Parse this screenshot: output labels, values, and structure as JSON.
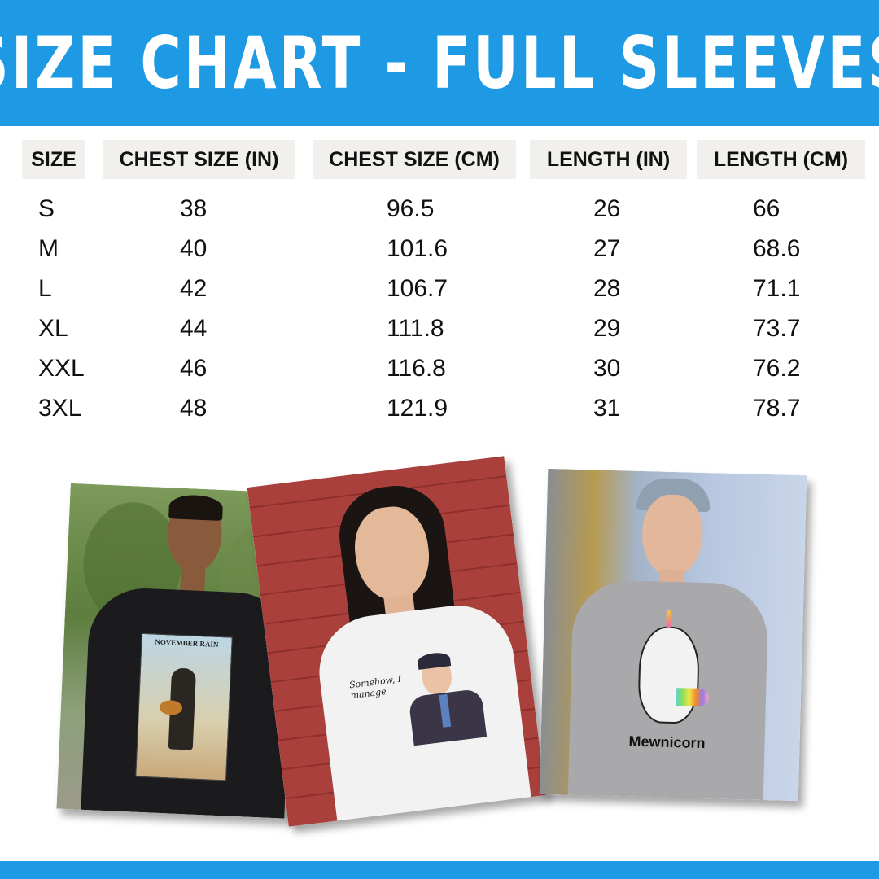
{
  "header": {
    "title": "SIZE CHART - FULL SLEEVES",
    "color": "#1e9ae4"
  },
  "table": {
    "columns": [
      "SIZE",
      "CHEST SIZE (IN)",
      "CHEST SIZE (CM)",
      "LENGTH (IN)",
      "LENGTH (CM)"
    ],
    "rows": [
      [
        "S",
        "38",
        "96.5",
        "26",
        "66"
      ],
      [
        "M",
        "40",
        "101.6",
        "27",
        "68.6"
      ],
      [
        "L",
        "42",
        "106.7",
        "28",
        "71.1"
      ],
      [
        "XL",
        "44",
        "111.8",
        "29",
        "73.7"
      ],
      [
        "XXL",
        "46",
        "116.8",
        "30",
        "76.2"
      ],
      [
        "3XL",
        "48",
        "121.9",
        "31",
        "78.7"
      ]
    ]
  },
  "photos": [
    {
      "shirt_text": "NOVEMBER RAIN",
      "shirt_color": "#1b1b1d"
    },
    {
      "shirt_text": "Somehow, I manage",
      "shirt_color": "#f2f2f2"
    },
    {
      "shirt_text": "Mewnicorn",
      "shirt_color": "#a9a9ab"
    }
  ]
}
